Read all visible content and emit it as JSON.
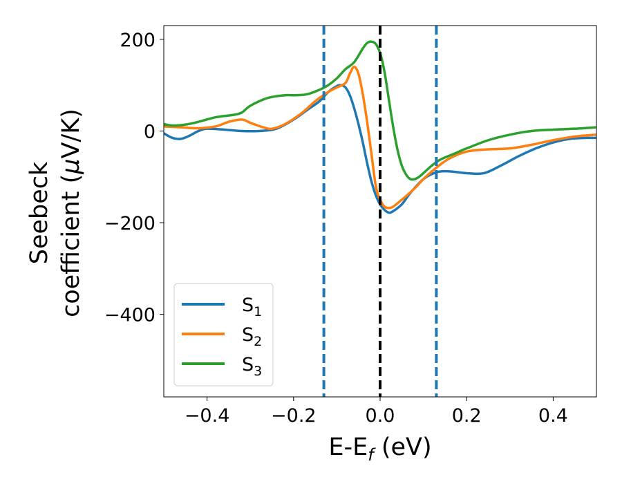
{
  "chart_data": {
    "type": "line",
    "xlabel": {
      "main": "E-E",
      "sub": "f",
      "unit": " (eV)"
    },
    "ylabel": {
      "line1": "Seebeck",
      "line2": "coefficient  (",
      "mu": "μ",
      "line2_end": "V/K)"
    },
    "xlim": [
      -0.5,
      0.5
    ],
    "ylim": [
      -580,
      230
    ],
    "xticks": [
      -0.4,
      -0.2,
      0.0,
      0.2,
      0.4
    ],
    "xtick_labels": [
      "−0.4",
      "−0.2",
      "0.0",
      "0.2",
      "0.4"
    ],
    "yticks": [
      200,
      0,
      -200,
      -400
    ],
    "ytick_labels": [
      "200",
      "0",
      "−200",
      "−400"
    ],
    "grid": false,
    "legend_position": "lower-left",
    "vlines": [
      {
        "x": -0.13,
        "style": "dashed",
        "color": "#1f77b4"
      },
      {
        "x": 0.0,
        "style": "dashed",
        "color": "#000000"
      },
      {
        "x": 0.13,
        "style": "dashed",
        "color": "#1f77b4"
      }
    ],
    "series": [
      {
        "name": "S",
        "sub": "1",
        "color": "#1f77b4",
        "x": [
          -0.5,
          -0.48,
          -0.46,
          -0.44,
          -0.42,
          -0.4,
          -0.36,
          -0.32,
          -0.28,
          -0.24,
          -0.2,
          -0.17,
          -0.14,
          -0.12,
          -0.1,
          -0.09,
          -0.08,
          -0.07,
          -0.06,
          -0.05,
          -0.04,
          -0.03,
          -0.02,
          -0.01,
          0.0,
          0.01,
          0.02,
          0.03,
          0.05,
          0.07,
          0.1,
          0.13,
          0.16,
          0.2,
          0.24,
          0.28,
          0.32,
          0.36,
          0.4,
          0.44,
          0.48,
          0.5
        ],
        "y": [
          -5,
          -15,
          -17,
          -10,
          0,
          5,
          3,
          0,
          0,
          5,
          25,
          45,
          65,
          85,
          98,
          100,
          95,
          78,
          50,
          15,
          -25,
          -70,
          -110,
          -140,
          -160,
          -172,
          -178,
          -175,
          -160,
          -135,
          -105,
          -90,
          -88,
          -92,
          -92,
          -75,
          -55,
          -38,
          -25,
          -17,
          -15,
          -15
        ]
      },
      {
        "name": "S",
        "sub": "2",
        "color": "#ff7f0e",
        "x": [
          -0.5,
          -0.46,
          -0.42,
          -0.38,
          -0.35,
          -0.32,
          -0.3,
          -0.27,
          -0.25,
          -0.22,
          -0.18,
          -0.15,
          -0.12,
          -0.1,
          -0.08,
          -0.07,
          -0.06,
          -0.05,
          -0.04,
          -0.03,
          -0.02,
          -0.01,
          0.0,
          0.01,
          0.02,
          0.03,
          0.05,
          0.08,
          0.1,
          0.13,
          0.16,
          0.2,
          0.25,
          0.3,
          0.35,
          0.4,
          0.45,
          0.5
        ],
        "y": [
          10,
          8,
          6,
          10,
          20,
          25,
          18,
          8,
          5,
          15,
          40,
          65,
          85,
          95,
          105,
          125,
          140,
          125,
          80,
          20,
          -50,
          -120,
          -150,
          -165,
          -168,
          -165,
          -150,
          -125,
          -105,
          -80,
          -60,
          -45,
          -40,
          -38,
          -30,
          -20,
          -12,
          -8
        ]
      },
      {
        "name": "S",
        "sub": "3",
        "color": "#2ca02c",
        "x": [
          -0.5,
          -0.48,
          -0.45,
          -0.42,
          -0.38,
          -0.34,
          -0.32,
          -0.3,
          -0.26,
          -0.22,
          -0.2,
          -0.17,
          -0.14,
          -0.12,
          -0.1,
          -0.08,
          -0.06,
          -0.04,
          -0.03,
          -0.02,
          -0.01,
          0.0,
          0.01,
          0.02,
          0.03,
          0.04,
          0.05,
          0.06,
          0.07,
          0.08,
          0.09,
          0.1,
          0.12,
          0.14,
          0.17,
          0.2,
          0.25,
          0.3,
          0.35,
          0.4,
          0.45,
          0.5
        ],
        "y": [
          15,
          12,
          14,
          20,
          30,
          35,
          40,
          55,
          72,
          78,
          78,
          80,
          90,
          100,
          115,
          135,
          150,
          180,
          192,
          195,
          190,
          170,
          130,
          70,
          10,
          -40,
          -75,
          -95,
          -105,
          -105,
          -100,
          -92,
          -75,
          -62,
          -50,
          -38,
          -20,
          -8,
          0,
          3,
          5,
          8
        ]
      }
    ]
  }
}
